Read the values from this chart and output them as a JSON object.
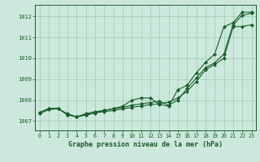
{
  "x": [
    0,
    1,
    2,
    3,
    4,
    5,
    6,
    7,
    8,
    9,
    10,
    11,
    12,
    13,
    14,
    15,
    16,
    17,
    18,
    19,
    20,
    21,
    22,
    23
  ],
  "line1": [
    1007.4,
    1007.6,
    1007.6,
    1007.3,
    1007.2,
    1007.3,
    1007.4,
    1007.5,
    1007.6,
    1007.7,
    1008.0,
    1008.1,
    1008.1,
    1007.8,
    1007.7,
    1008.5,
    1008.7,
    1009.3,
    1009.8,
    1010.2,
    1011.5,
    1011.7,
    1012.2,
    1012.2
  ],
  "line2": [
    1007.4,
    1007.6,
    1007.6,
    1007.3,
    1007.2,
    1007.35,
    1007.45,
    1007.5,
    1007.58,
    1007.65,
    1007.75,
    1007.82,
    1007.88,
    1007.95,
    1007.75,
    1008.0,
    1008.55,
    1009.05,
    1009.55,
    1009.78,
    1010.2,
    1011.6,
    1012.05,
    1012.15
  ],
  "line3": [
    1007.35,
    1007.55,
    1007.58,
    1007.35,
    1007.2,
    1007.28,
    1007.38,
    1007.45,
    1007.5,
    1007.58,
    1007.65,
    1007.72,
    1007.78,
    1007.82,
    1007.9,
    1008.1,
    1008.42,
    1008.88,
    1009.45,
    1009.7,
    1010.0,
    1011.5,
    1011.52,
    1011.6
  ],
  "bg_color": "#cce8dc",
  "grid_color": "#99ccb3",
  "line_color": "#1a5c2a",
  "marker_color": "#1a5c2a",
  "xlabel": "Graphe pression niveau de la mer (hPa)",
  "ylabel_ticks": [
    1007,
    1008,
    1009,
    1010,
    1011,
    1012
  ],
  "ylim": [
    1006.55,
    1012.55
  ],
  "xlim": [
    -0.5,
    23.5
  ],
  "xticks": [
    0,
    1,
    2,
    3,
    4,
    5,
    6,
    7,
    8,
    9,
    10,
    11,
    12,
    13,
    14,
    15,
    16,
    17,
    18,
    19,
    20,
    21,
    22,
    23
  ]
}
